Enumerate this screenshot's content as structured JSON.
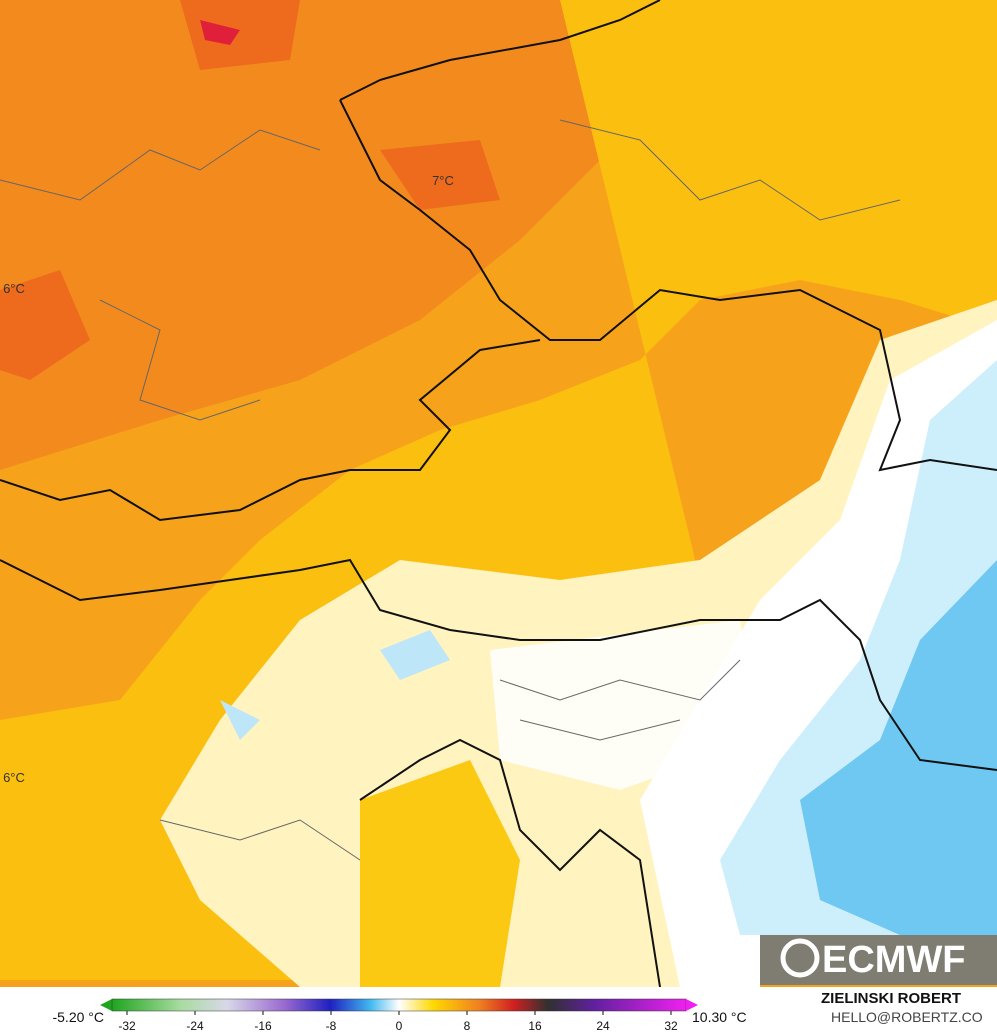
{
  "map": {
    "labels": [
      "7°C",
      "6°C",
      "6°C"
    ]
  },
  "colorbar": {
    "lim": [
      -32,
      32
    ],
    "ticks": [
      -32,
      -24,
      -16,
      -8,
      0,
      8,
      16,
      24,
      32
    ],
    "min_label": "-5.20 °C",
    "max_label": "10.30 °C"
  },
  "footer": {
    "author": "ZIELINSKI ROBERT",
    "email": "HELLO@ROBERTZ.CO",
    "logo": "ECMWF"
  }
}
